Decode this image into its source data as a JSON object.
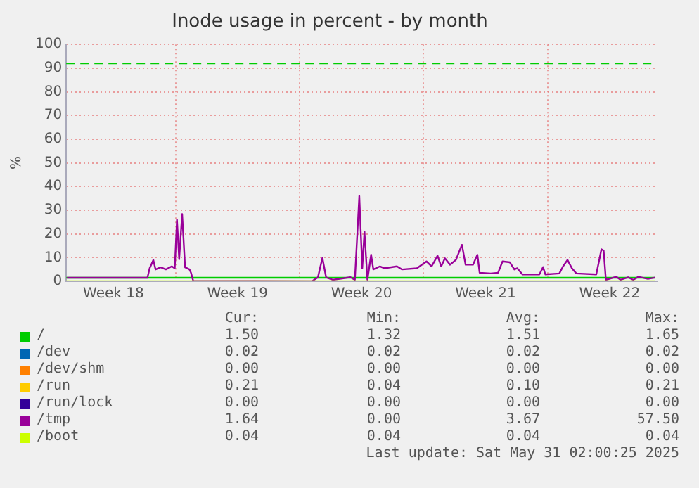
{
  "chart_data": {
    "type": "line",
    "title": "Inode usage in percent - by month",
    "ylabel": "%",
    "xlim": [
      "2025-04-27T20:00",
      "2025-05-31T04:00"
    ],
    "xticks": [
      {
        "value": "2025-04-30T12:00",
        "label": "Week 18"
      },
      {
        "value": "2025-05-04T00:00",
        "label": null
      },
      {
        "value": "2025-05-07T12:00",
        "label": "Week 19"
      },
      {
        "value": "2025-05-11T00:00",
        "label": null
      },
      {
        "value": "2025-05-14T12:00",
        "label": "Week 20"
      },
      {
        "value": "2025-05-18T00:00",
        "label": null
      },
      {
        "value": "2025-05-21T12:00",
        "label": "Week 21"
      },
      {
        "value": "2025-05-25T00:00",
        "label": null
      },
      {
        "value": "2025-05-28T12:00",
        "label": "Week 22"
      }
    ],
    "ylim": [
      0,
      100
    ],
    "yticks": [
      0,
      10,
      20,
      30,
      40,
      50,
      60,
      70,
      80,
      90,
      100
    ],
    "grid": true,
    "legend": "bottom",
    "marker": "none",
    "line_style": "solid",
    "ref_lines": [
      {
        "axis": "y",
        "value": 92,
        "color": "#00cc00",
        "line_style": "dashed"
      }
    ],
    "series": [
      {
        "name": "/",
        "color": "#00cc00",
        "x": [
          "2025-04-27T20:00",
          "2025-05-14T00:00",
          "2025-05-31T02:00"
        ],
        "values": [
          1.5,
          1.5,
          1.5
        ]
      },
      {
        "name": "/dev",
        "color": "#0066b3",
        "values": [
          null
        ]
      },
      {
        "name": "/dev/shm",
        "color": "#ff8000",
        "values": [
          null
        ]
      },
      {
        "name": "/run",
        "color": "#ffcc00",
        "values": [
          null
        ]
      },
      {
        "name": "/run/lock",
        "color": "#330099",
        "values": [
          null
        ]
      },
      {
        "name": "/tmp",
        "color": "#990099",
        "x": [
          "2025-04-27T21:00",
          "2025-05-02T10:00",
          "2025-05-02T13:00",
          "2025-05-02T18:00",
          "2025-05-02T21:00",
          "2025-05-03T04:00",
          "2025-05-03T11:00",
          "2025-05-03T19:00",
          "2025-05-03T23:00",
          "2025-05-04T02:00",
          "2025-05-04T05:00",
          "2025-05-04T09:00",
          "2025-05-04T13:00",
          "2025-05-04T19:00",
          "2025-05-04T21:00",
          "2025-05-05T00:00",
          "2025-05-11T17:00",
          "2025-05-12T01:00",
          "2025-05-12T07:00",
          "2025-05-12T12:00",
          "2025-05-12T21:00",
          "2025-05-13T21:00",
          "2025-05-14T03:00",
          "2025-05-14T09:00",
          "2025-05-14T13:00",
          "2025-05-14T16:00",
          "2025-05-14T20:00",
          "2025-05-15T01:00",
          "2025-05-15T04:00",
          "2025-05-15T13:00",
          "2025-05-15T19:00",
          "2025-05-16T12:00",
          "2025-05-16T19:00",
          "2025-05-17T15:00",
          "2025-05-18T04:00",
          "2025-05-18T11:00",
          "2025-05-18T19:00",
          "2025-05-19T00:00",
          "2025-05-19T05:00",
          "2025-05-19T12:00",
          "2025-05-19T20:00",
          "2025-05-20T04:00",
          "2025-05-20T09:00",
          "2025-05-20T19:00",
          "2025-05-21T01:00",
          "2025-05-21T04:00",
          "2025-05-21T19:00",
          "2025-05-22T05:00",
          "2025-05-22T11:00",
          "2025-05-22T21:00",
          "2025-05-23T03:00",
          "2025-05-23T07:00",
          "2025-05-23T14:00",
          "2025-05-24T13:00",
          "2025-05-24T18:00",
          "2025-05-24T21:00",
          "2025-05-25T16:00",
          "2025-05-25T21:00",
          "2025-05-26T03:00",
          "2025-05-26T09:00",
          "2025-05-26T15:00",
          "2025-05-27T18:00",
          "2025-05-28T01:00",
          "2025-05-28T04:00",
          "2025-05-28T07:00",
          "2025-05-28T21:00",
          "2025-05-29T03:00",
          "2025-05-29T13:00",
          "2025-05-29T20:00",
          "2025-05-30T03:00",
          "2025-05-30T16:00",
          "2025-05-31T02:00"
        ],
        "values": [
          1.5,
          1.5,
          5.5,
          9,
          5,
          5.9,
          5,
          6.3,
          5.5,
          26,
          9.3,
          28.4,
          5.9,
          5,
          3.6,
          0.2,
          0,
          1.7,
          9.9,
          1.7,
          0.6,
          1.7,
          0.6,
          36,
          5.5,
          21,
          0.6,
          11.2,
          5,
          6.3,
          5.5,
          6.3,
          5,
          5.5,
          8.4,
          6.3,
          10.8,
          6.3,
          9.7,
          7,
          9.1,
          15.4,
          7,
          7,
          11.2,
          3.6,
          3.3,
          3.6,
          8.4,
          8,
          5,
          5.5,
          2.9,
          2.9,
          6,
          2.9,
          3.3,
          6.3,
          9,
          5.5,
          3.3,
          2.9,
          13.5,
          13,
          0.6,
          1.9,
          0.6,
          1.7,
          0.6,
          1.9,
          1,
          1.6
        ]
      },
      {
        "name": "/boot",
        "color": "#ccff00",
        "x": [
          "2025-04-27T20:00",
          "2025-05-31T02:00"
        ],
        "values": [
          0,
          0
        ]
      }
    ],
    "annotations": [
      "Cur:",
      "Min:",
      "Avg:",
      "Max:",
      "1.50",
      "1.32",
      "1.51",
      "1.65",
      "0.02",
      "0.02",
      "0.02",
      "0.02",
      "0.00",
      "0.00",
      "0.00",
      "0.00",
      "0.21",
      "0.04",
      "0.10",
      "0.21",
      "0.00",
      "0.00",
      "0.00",
      "0.00",
      "1.64",
      "0.00",
      "3.67",
      "57.50",
      "0.04",
      "0.04",
      "0.04",
      "0.04",
      "Last update: Sat May 31 02:00:25 2025"
    ]
  }
}
